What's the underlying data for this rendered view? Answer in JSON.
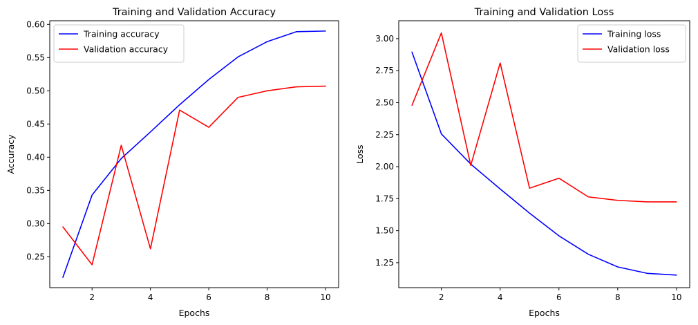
{
  "chart_data": [
    {
      "type": "line",
      "title": "Training and Validation Accuracy",
      "xlabel": "Epochs",
      "ylabel": "Accuracy",
      "x": [
        1,
        2,
        3,
        4,
        5,
        6,
        7,
        8,
        9,
        10
      ],
      "xlim": [
        0.55,
        10.45
      ],
      "ylim": [
        0.2035,
        0.6055
      ],
      "xticks": [
        2,
        4,
        6,
        8,
        10
      ],
      "xtick_labels": [
        "2",
        "4",
        "6",
        "8",
        "10"
      ],
      "yticks": [
        0.25,
        0.3,
        0.35,
        0.4,
        0.45,
        0.5,
        0.55,
        0.6
      ],
      "ytick_labels": [
        "0.25",
        "0.30",
        "0.35",
        "0.40",
        "0.45",
        "0.50",
        "0.55",
        "0.60"
      ],
      "legend_position": "top-left",
      "grid": false,
      "series": [
        {
          "name": "Training accuracy",
          "color": "#0000ff",
          "values": [
            0.219,
            0.343,
            0.398,
            0.438,
            0.479,
            0.517,
            0.551,
            0.574,
            0.589,
            0.59
          ]
        },
        {
          "name": "Validation accuracy",
          "color": "#ff0000",
          "values": [
            0.295,
            0.238,
            0.418,
            0.262,
            0.471,
            0.445,
            0.49,
            0.5,
            0.506,
            0.507
          ]
        }
      ]
    },
    {
      "type": "line",
      "title": "Training and Validation Loss",
      "xlabel": "Epochs",
      "ylabel": "Loss",
      "x": [
        1,
        2,
        3,
        4,
        5,
        6,
        7,
        8,
        9,
        10
      ],
      "xlim": [
        0.55,
        10.45
      ],
      "ylim": [
        1.055,
        3.14
      ],
      "xticks": [
        2,
        4,
        6,
        8,
        10
      ],
      "xtick_labels": [
        "2",
        "4",
        "6",
        "8",
        "10"
      ],
      "yticks": [
        1.25,
        1.5,
        1.75,
        2.0,
        2.25,
        2.5,
        2.75,
        3.0
      ],
      "ytick_labels": [
        "1.25",
        "1.50",
        "1.75",
        "2.00",
        "2.25",
        "2.50",
        "2.75",
        "3.00"
      ],
      "legend_position": "top-right",
      "grid": false,
      "series": [
        {
          "name": "Training loss",
          "color": "#0000ff",
          "values": [
            2.895,
            2.256,
            2.02,
            1.826,
            1.637,
            1.46,
            1.316,
            1.217,
            1.167,
            1.153
          ]
        },
        {
          "name": "Validation loss",
          "color": "#ff0000",
          "values": [
            2.48,
            3.045,
            2.01,
            2.81,
            1.832,
            1.91,
            1.764,
            1.737,
            1.725,
            1.725
          ]
        }
      ]
    }
  ]
}
